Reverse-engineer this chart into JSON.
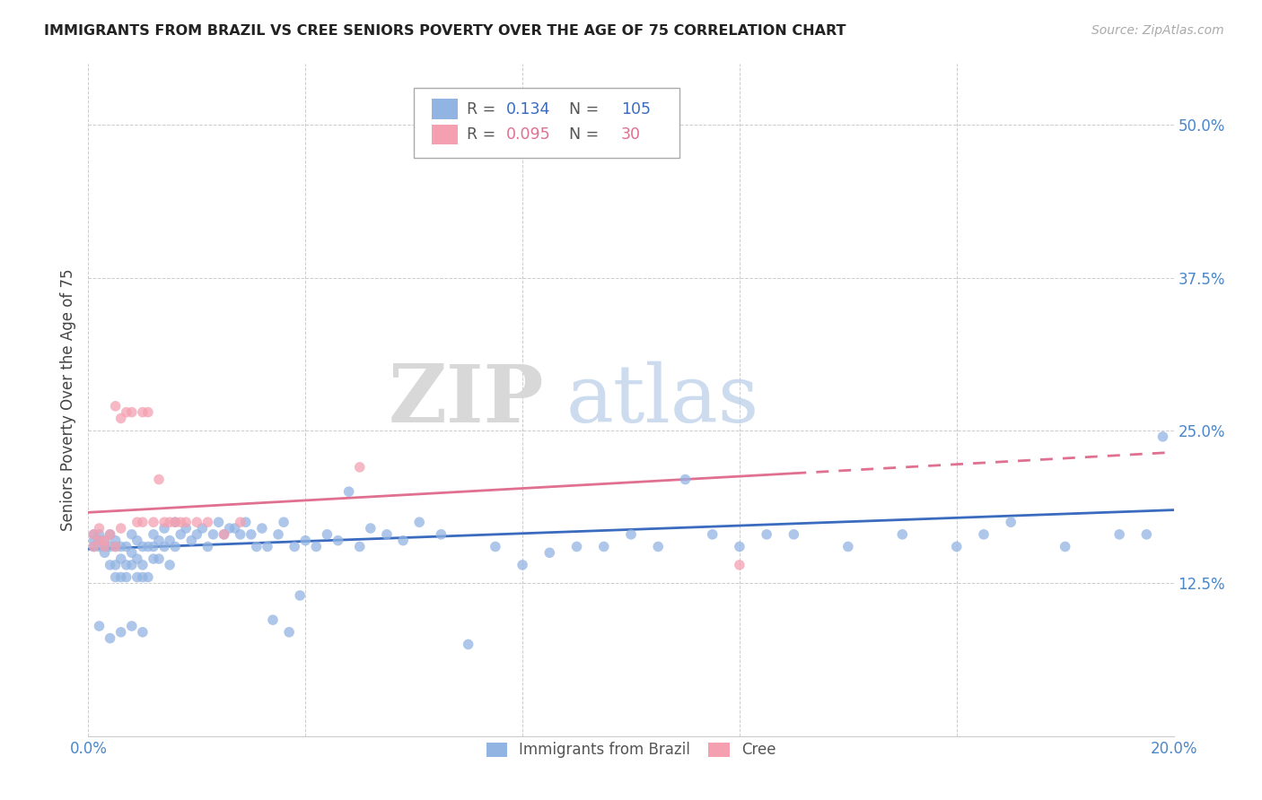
{
  "title": "IMMIGRANTS FROM BRAZIL VS CREE SENIORS POVERTY OVER THE AGE OF 75 CORRELATION CHART",
  "source": "Source: ZipAtlas.com",
  "ylabel": "Seniors Poverty Over the Age of 75",
  "xlim": [
    0.0,
    0.2
  ],
  "ylim": [
    0.0,
    0.55
  ],
  "ytick_vals": [
    0.125,
    0.25,
    0.375,
    0.5
  ],
  "ytick_labels": [
    "12.5%",
    "25.0%",
    "37.5%",
    "50.0%"
  ],
  "xtick_vals": [
    0.0,
    0.2
  ],
  "xtick_labels": [
    "0.0%",
    "20.0%"
  ],
  "brazil_color": "#92b4e3",
  "cree_color": "#f4a0b0",
  "brazil_line_color": "#3a6bbf",
  "cree_line_color": "#e07090",
  "watermark_zip": "ZIP",
  "watermark_atlas": "atlas",
  "title_color": "#222222",
  "axis_color": "#4a86c8",
  "legend_r_brazil": "0.134",
  "legend_n_brazil": "105",
  "legend_r_cree": "0.095",
  "legend_n_cree": "30",
  "brazil_x": [
    0.001,
    0.001,
    0.001,
    0.002,
    0.002,
    0.002,
    0.003,
    0.003,
    0.003,
    0.004,
    0.004,
    0.004,
    0.005,
    0.005,
    0.005,
    0.005,
    0.006,
    0.006,
    0.006,
    0.007,
    0.007,
    0.007,
    0.008,
    0.008,
    0.008,
    0.009,
    0.009,
    0.009,
    0.01,
    0.01,
    0.01,
    0.011,
    0.011,
    0.012,
    0.012,
    0.012,
    0.013,
    0.013,
    0.014,
    0.014,
    0.015,
    0.015,
    0.016,
    0.016,
    0.017,
    0.018,
    0.019,
    0.02,
    0.021,
    0.022,
    0.023,
    0.024,
    0.025,
    0.026,
    0.027,
    0.028,
    0.029,
    0.03,
    0.031,
    0.032,
    0.033,
    0.034,
    0.035,
    0.036,
    0.037,
    0.038,
    0.039,
    0.04,
    0.042,
    0.044,
    0.046,
    0.048,
    0.05,
    0.052,
    0.055,
    0.058,
    0.061,
    0.065,
    0.07,
    0.075,
    0.08,
    0.085,
    0.09,
    0.095,
    0.1,
    0.105,
    0.11,
    0.115,
    0.12,
    0.125,
    0.13,
    0.14,
    0.15,
    0.16,
    0.165,
    0.17,
    0.18,
    0.19,
    0.195,
    0.198,
    0.002,
    0.004,
    0.006,
    0.008,
    0.01
  ],
  "brazil_y": [
    0.155,
    0.16,
    0.165,
    0.155,
    0.16,
    0.165,
    0.15,
    0.155,
    0.16,
    0.14,
    0.155,
    0.165,
    0.13,
    0.14,
    0.155,
    0.16,
    0.13,
    0.145,
    0.155,
    0.13,
    0.14,
    0.155,
    0.14,
    0.15,
    0.165,
    0.13,
    0.145,
    0.16,
    0.13,
    0.14,
    0.155,
    0.13,
    0.155,
    0.145,
    0.155,
    0.165,
    0.145,
    0.16,
    0.155,
    0.17,
    0.14,
    0.16,
    0.155,
    0.175,
    0.165,
    0.17,
    0.16,
    0.165,
    0.17,
    0.155,
    0.165,
    0.175,
    0.165,
    0.17,
    0.17,
    0.165,
    0.175,
    0.165,
    0.155,
    0.17,
    0.155,
    0.095,
    0.165,
    0.175,
    0.085,
    0.155,
    0.115,
    0.16,
    0.155,
    0.165,
    0.16,
    0.2,
    0.155,
    0.17,
    0.165,
    0.16,
    0.175,
    0.165,
    0.075,
    0.155,
    0.14,
    0.15,
    0.155,
    0.155,
    0.165,
    0.155,
    0.21,
    0.165,
    0.155,
    0.165,
    0.165,
    0.155,
    0.165,
    0.155,
    0.165,
    0.175,
    0.155,
    0.165,
    0.165,
    0.245,
    0.09,
    0.08,
    0.085,
    0.09,
    0.085
  ],
  "cree_x": [
    0.001,
    0.001,
    0.002,
    0.002,
    0.003,
    0.003,
    0.004,
    0.005,
    0.005,
    0.006,
    0.006,
    0.007,
    0.008,
    0.009,
    0.01,
    0.01,
    0.011,
    0.012,
    0.013,
    0.014,
    0.015,
    0.016,
    0.017,
    0.018,
    0.02,
    0.022,
    0.025,
    0.028,
    0.05,
    0.12
  ],
  "cree_y": [
    0.155,
    0.165,
    0.16,
    0.17,
    0.16,
    0.155,
    0.165,
    0.155,
    0.27,
    0.26,
    0.17,
    0.265,
    0.265,
    0.175,
    0.175,
    0.265,
    0.265,
    0.175,
    0.21,
    0.175,
    0.175,
    0.175,
    0.175,
    0.175,
    0.175,
    0.175,
    0.165,
    0.175,
    0.22,
    0.14
  ]
}
